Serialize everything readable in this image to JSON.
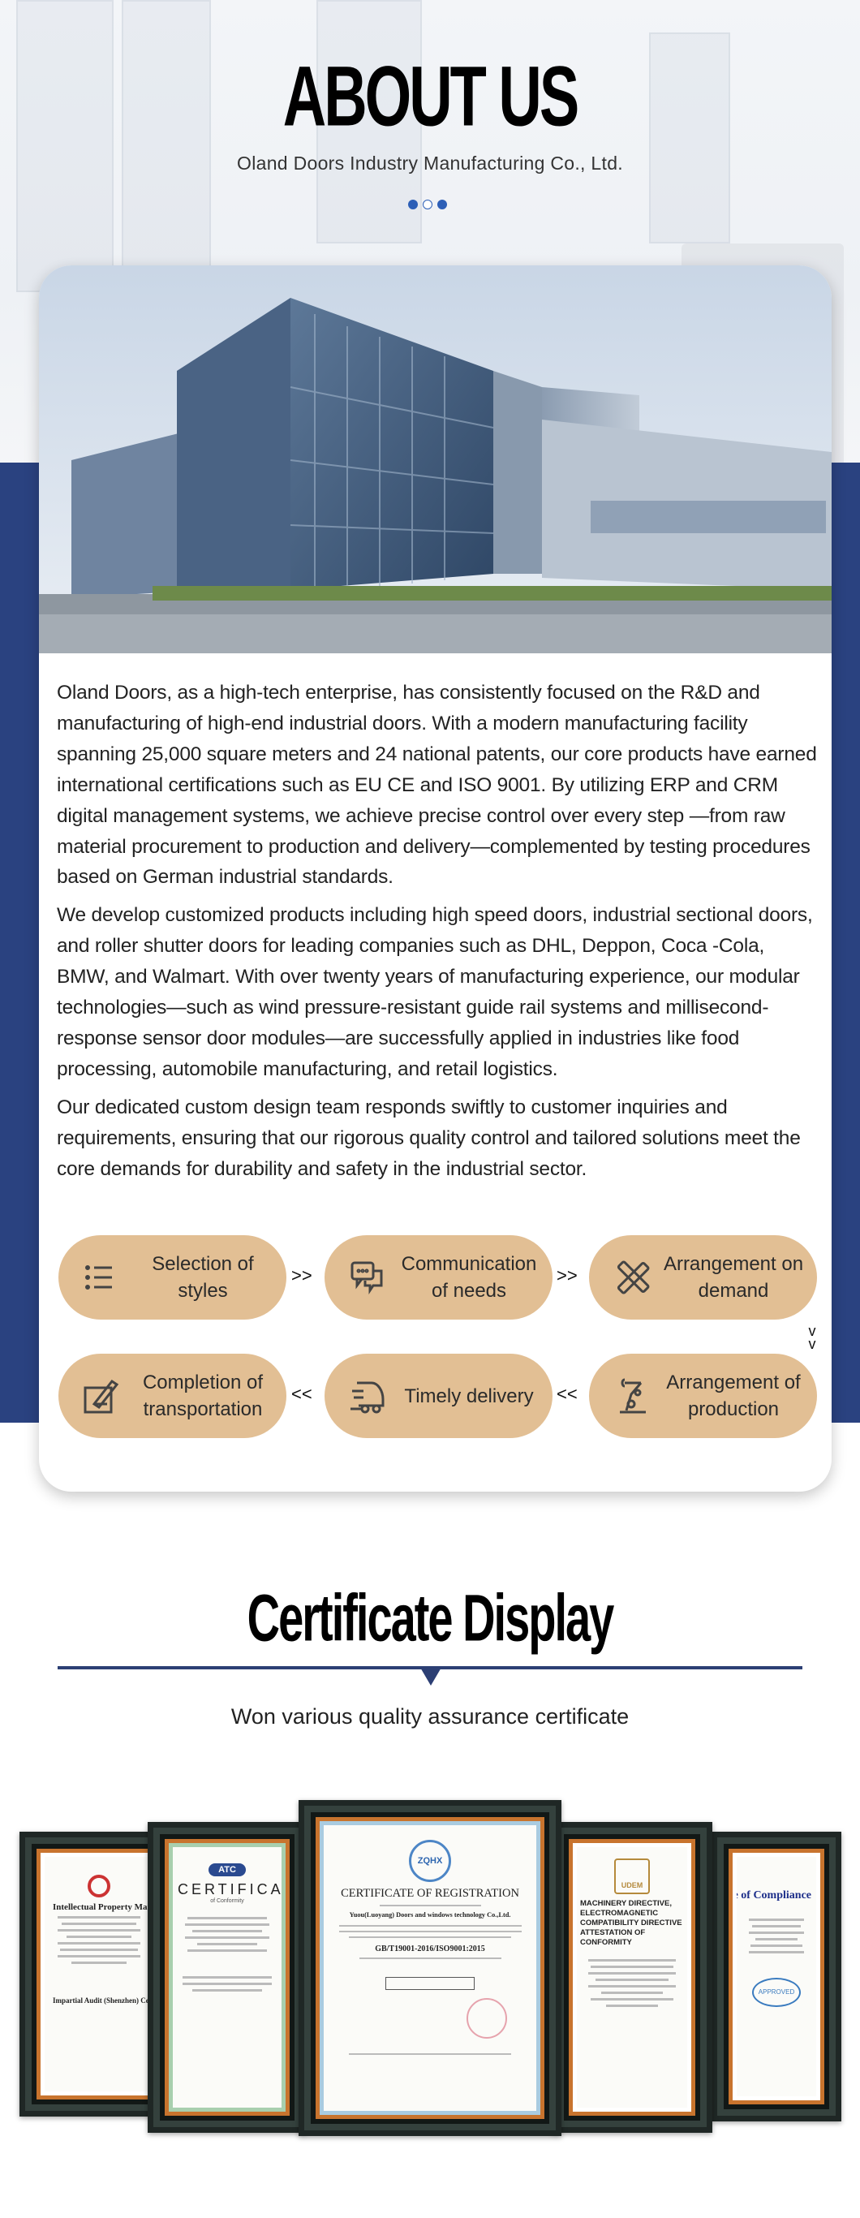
{
  "about": {
    "title": "ABOUT US",
    "subtitle": "Oland Doors Industry Manufacturing Co., Ltd.",
    "carousel_dots": 3,
    "active_dot": 2,
    "paragraphs": [
      "Oland Doors, as a high-tech enterprise, has consistently focused on the R&D and manufacturing of high-end industrial doors. With a modern manufacturing facility spanning 25,000 square meters and 24 national patents, our core products have earned international certifications such as EU CE and ISO 9001. By utilizing ERP and CRM digital management systems, we achieve precise control over every step —from raw material procurement to production and delivery—complemented by testing procedures based on German industrial standards.",
      "We develop customized products including high speed doors, industrial sectional doors, and roller shutter doors for leading companies such as DHL, Deppon, Coca -Cola, BMW, and Walmart. With over twenty years of manufacturing experience, our modular technologies—such as wind pressure-resistant guide rail systems and millisecond-response sensor door modules—are successfully applied in industries like food processing, automobile manufacturing, and retail logistics.",
      "Our dedicated custom design team responds swiftly to customer inquiries and requirements, ensuring that our rigorous quality control and tailored solutions meet the core demands for durability and safety in the industrial sector."
    ],
    "process": [
      {
        "label": "Selection of styles",
        "icon": "list-icon"
      },
      {
        "label": "Communication of needs",
        "icon": "chat-icon"
      },
      {
        "label": "Arrangement on demand",
        "icon": "ruler-pencil-icon"
      },
      {
        "label": "Arrangement of production",
        "icon": "robot-arm-icon"
      },
      {
        "label": "Timely delivery",
        "icon": "truck-icon"
      },
      {
        "label": "Completion of transportation",
        "icon": "sign-icon"
      }
    ],
    "arrow_right": ">>",
    "arrow_left": "<<",
    "arrow_down": "v v"
  },
  "certificates": {
    "title": "Certificate Display",
    "subtitle": "Won various quality assurance certificate",
    "items": [
      {
        "heading": "Intellectual Property Management System Certificate",
        "org": "Impartial Audit (Shenzhen) Certification"
      },
      {
        "heading": "CERTIFICATE",
        "org": "ATC",
        "sub": "of Conformity"
      },
      {
        "heading": "CERTIFICATE OF REGISTRATION",
        "org": "ZQHX",
        "company": "Yuou(Luoyang) Doors and windows technology Co.,Ltd.",
        "standard": "GB/T19001-2016/ISO9001:2015"
      },
      {
        "heading": "MACHINERY DIRECTIVE, ELECTROMAGNETIC COMPATIBILITY DIRECTIVE ATTESTATION OF CONFORMITY",
        "org": "UDEM"
      },
      {
        "heading": "Certificate of Compliance",
        "org": "APPROVED"
      }
    ]
  },
  "colors": {
    "accent": "#2a4280",
    "pill": "#e2bf94",
    "dot": "#2d5fb7"
  }
}
